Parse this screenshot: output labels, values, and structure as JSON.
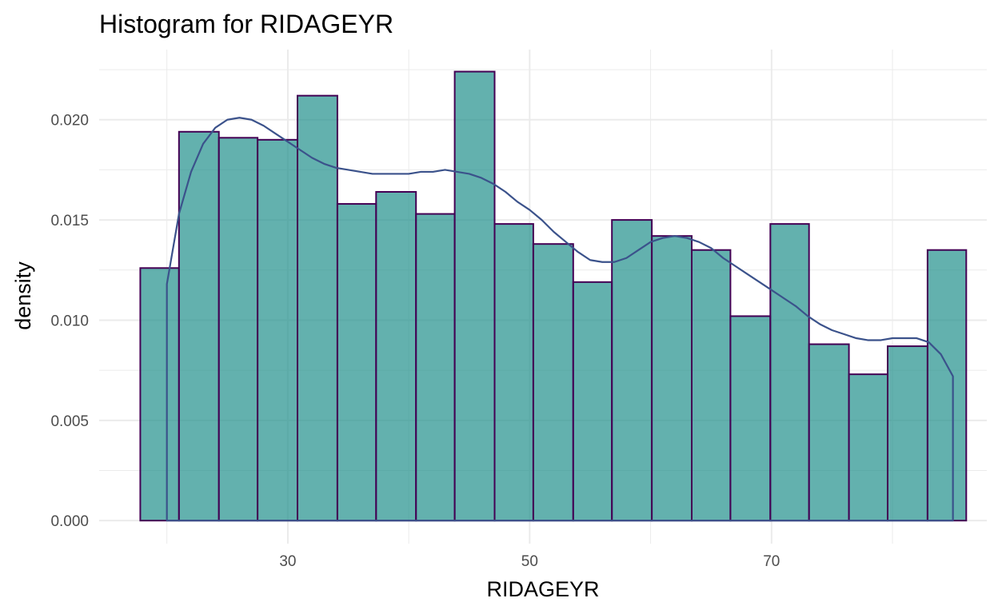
{
  "chart_data": {
    "type": "bar",
    "title": "Histogram for RIDAGEYR",
    "xlabel": "RIDAGEYR",
    "ylabel": "density",
    "xlim": [
      14.4,
      87.8
    ],
    "ylim": [
      -0.00115,
      0.0235
    ],
    "x_ticks": [
      30,
      50,
      70
    ],
    "x_minor_ticks": [
      20,
      40,
      60,
      80
    ],
    "y_ticks": [
      0.0,
      0.005,
      0.01,
      0.015,
      0.02
    ],
    "y_tick_labels": [
      "0.000",
      "0.005",
      "0.010",
      "0.015",
      "0.020"
    ],
    "y_minor_ticks": [
      0.0025,
      0.0075,
      0.0125,
      0.0175,
      0.0225
    ],
    "grid": true,
    "bin_edges": [
      17.8,
      21.0,
      24.3,
      27.5,
      30.8,
      34.1,
      37.3,
      40.6,
      43.8,
      47.1,
      50.3,
      53.6,
      56.8,
      60.1,
      63.4,
      66.6,
      69.9,
      73.1,
      76.4,
      79.6,
      82.9,
      86.1
    ],
    "values": [
      0.0126,
      0.0194,
      0.0191,
      0.019,
      0.0212,
      0.0158,
      0.0164,
      0.0153,
      0.0224,
      0.0148,
      0.0138,
      0.0119,
      0.015,
      0.0142,
      0.0135,
      0.0102,
      0.0148,
      0.0088,
      0.0073,
      0.0087,
      0.0135
    ],
    "density_curve": {
      "x": [
        20,
        21,
        22,
        23,
        24,
        25,
        26,
        27,
        28,
        29,
        30,
        31,
        32,
        33,
        34,
        35,
        36,
        37,
        38,
        39,
        40,
        41,
        42,
        43,
        44,
        45,
        46,
        47,
        48,
        49,
        50,
        51,
        52,
        53,
        54,
        55,
        56,
        57,
        58,
        59,
        60,
        61,
        62,
        63,
        64,
        65,
        66,
        67,
        68,
        69,
        70,
        71,
        72,
        73,
        74,
        75,
        76,
        77,
        78,
        79,
        80,
        81,
        82,
        83,
        84,
        85
      ],
      "y": [
        0.0118,
        0.0153,
        0.0174,
        0.0188,
        0.0196,
        0.02,
        0.0201,
        0.02,
        0.0197,
        0.0193,
        0.0189,
        0.0185,
        0.0181,
        0.0178,
        0.0176,
        0.0175,
        0.0174,
        0.0173,
        0.0173,
        0.0173,
        0.0173,
        0.0174,
        0.0174,
        0.0175,
        0.0174,
        0.0173,
        0.0171,
        0.0168,
        0.0164,
        0.0159,
        0.0155,
        0.015,
        0.0144,
        0.0139,
        0.0134,
        0.013,
        0.0129,
        0.0129,
        0.0131,
        0.0135,
        0.0139,
        0.0141,
        0.0142,
        0.0141,
        0.0139,
        0.0136,
        0.0131,
        0.0127,
        0.0123,
        0.0119,
        0.0115,
        0.0111,
        0.0107,
        0.0102,
        0.0098,
        0.0095,
        0.0093,
        0.0091,
        0.009,
        0.009,
        0.0091,
        0.0091,
        0.0091,
        0.0089,
        0.0083,
        0.0072
      ]
    },
    "colors": {
      "bar_fill": "#21908c",
      "bar_fill_opacity": 0.7,
      "bar_outline": "#440154",
      "density_line": "#3b528b",
      "grid": "#ebebeb"
    }
  }
}
